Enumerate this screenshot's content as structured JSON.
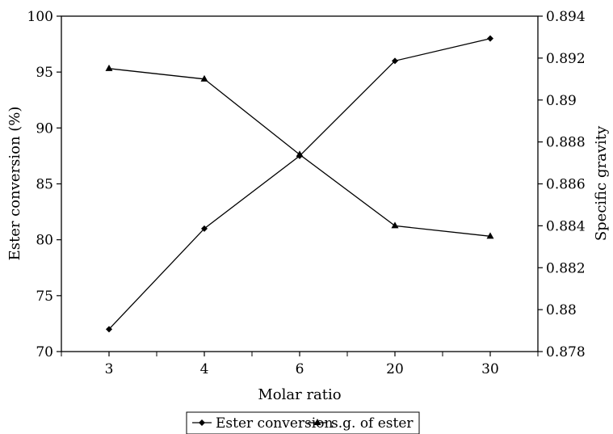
{
  "chart_data": {
    "type": "line",
    "title": "",
    "xlabel": "Molar ratio",
    "ylabel_left": "Ester conversion (%)",
    "ylabel_right": "Specific gravity",
    "categories": [
      "3",
      "4",
      "6",
      "20",
      "30"
    ],
    "y_left": {
      "range": [
        70,
        100
      ],
      "ticks": [
        70,
        75,
        80,
        85,
        90,
        95,
        100
      ],
      "tick_labels": [
        "70",
        "75",
        "80",
        "85",
        "90",
        "95",
        "100"
      ]
    },
    "y_right": {
      "range": [
        0.878,
        0.894
      ],
      "ticks": [
        0.878,
        0.88,
        0.882,
        0.884,
        0.886,
        0.888,
        0.89,
        0.892,
        0.894
      ],
      "tick_labels": [
        "0.878",
        "0.88",
        "0.882",
        "0.884",
        "0.886",
        "0.888",
        "0.89",
        "0.892",
        "0.894"
      ]
    },
    "series": [
      {
        "name": "Ester conversion",
        "axis": "left",
        "marker": "diamond",
        "values": [
          72,
          81,
          87.5,
          96,
          98
        ]
      },
      {
        "name": "s.g. of ester",
        "axis": "right",
        "marker": "triangle",
        "values": [
          0.8915,
          0.891,
          0.8874,
          0.884,
          0.8835
        ]
      }
    ],
    "grid": false,
    "legend_position": "bottom"
  }
}
